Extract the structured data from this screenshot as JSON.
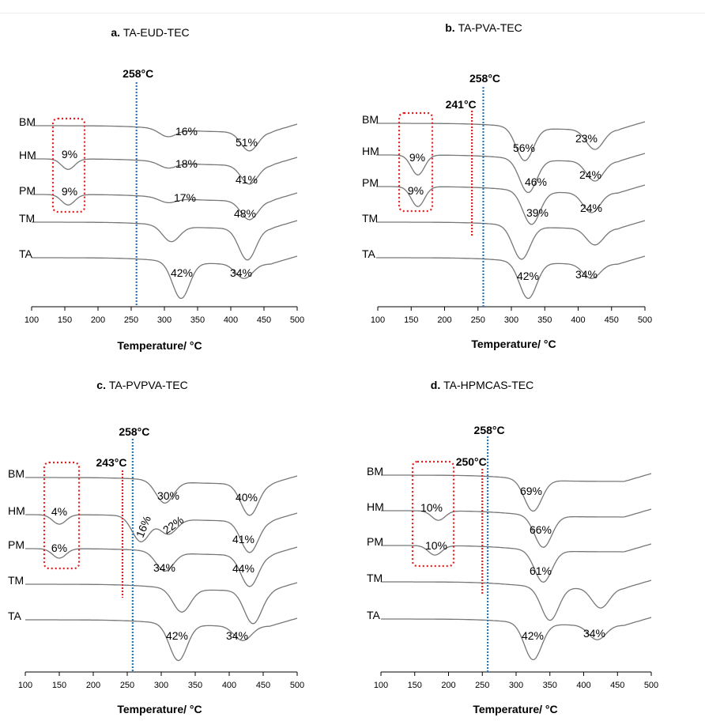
{
  "colors": {
    "curve": "#777777",
    "blue_line": "#2e75b6",
    "red_line": "#e02020",
    "box": "#e02020"
  },
  "chart_data": [
    {
      "type": "line",
      "letter": "a.",
      "title": "TA-EUD-TEC",
      "xlabel": "Temperature/ °C",
      "ylabel": "",
      "xlim": [
        100,
        500
      ],
      "xticks": [
        "100",
        "150",
        "200",
        "250",
        "300",
        "350",
        "400",
        "450",
        "500"
      ],
      "series": [
        {
          "name": "BM",
          "events": [
            {
              "t": 305,
              "depth": 0.4
            },
            {
              "t": 428,
              "depth": 1.0
            }
          ]
        },
        {
          "name": "HM",
          "events": [
            {
              "t": 155,
              "depth": 0.55
            },
            {
              "t": 305,
              "depth": 0.3
            },
            {
              "t": 428,
              "depth": 1.0
            }
          ]
        },
        {
          "name": "PM",
          "events": [
            {
              "t": 155,
              "depth": 0.55
            },
            {
              "t": 305,
              "depth": 0.25
            },
            {
              "t": 428,
              "depth": 1.0
            }
          ]
        },
        {
          "name": "TM",
          "events": [
            {
              "t": 310,
              "depth": 0.5
            },
            {
              "t": 425,
              "depth": 1.0
            }
          ]
        },
        {
          "name": "TA",
          "events": [
            {
              "t": 325,
              "depth": 1.0
            },
            {
              "t": 420,
              "depth": 0.4
            }
          ]
        }
      ],
      "blue_line": {
        "x": 258,
        "label": "258°C"
      },
      "red_line": null,
      "annotations": [
        {
          "series": "BM",
          "text": "16%"
        },
        {
          "series": "BM",
          "text": "51%"
        },
        {
          "series": "HM",
          "text": "9%"
        },
        {
          "series": "HM",
          "text": "18%"
        },
        {
          "series": "HM",
          "text": "41%"
        },
        {
          "series": "PM",
          "text": "9%"
        },
        {
          "series": "PM",
          "text": "17%"
        },
        {
          "series": "PM",
          "text": "48%"
        },
        {
          "series": "TA",
          "text": "42%"
        },
        {
          "series": "TA",
          "text": "34%"
        }
      ]
    },
    {
      "type": "line",
      "letter": "b.",
      "title": "TA-PVA-TEC",
      "xlabel": "Temperature/ °C",
      "ylabel": "",
      "xlim": [
        100,
        500
      ],
      "xticks": [
        "100",
        "150",
        "200",
        "250",
        "300",
        "350",
        "400",
        "450",
        "500"
      ],
      "series": [
        {
          "name": "BM",
          "events": [
            {
              "t": 320,
              "depth": 1.0
            },
            {
              "t": 425,
              "depth": 0.6
            }
          ]
        },
        {
          "name": "HM",
          "events": [
            {
              "t": 160,
              "depth": 0.6
            },
            {
              "t": 325,
              "depth": 1.0
            },
            {
              "t": 425,
              "depth": 0.6
            }
          ]
        },
        {
          "name": "PM",
          "events": [
            {
              "t": 160,
              "depth": 0.6
            },
            {
              "t": 330,
              "depth": 1.0
            },
            {
              "t": 420,
              "depth": 0.6
            }
          ]
        },
        {
          "name": "TM",
          "events": [
            {
              "t": 315,
              "depth": 1.0
            },
            {
              "t": 425,
              "depth": 0.5
            }
          ]
        },
        {
          "name": "TA",
          "events": [
            {
              "t": 325,
              "depth": 1.0
            },
            {
              "t": 420,
              "depth": 0.4
            }
          ]
        }
      ],
      "blue_line": {
        "x": 258,
        "label": "258°C"
      },
      "red_line": {
        "x": 241,
        "label": "241°C"
      },
      "annotations": [
        {
          "series": "BM",
          "text": "56%"
        },
        {
          "series": "BM",
          "text": "23%"
        },
        {
          "series": "HM",
          "text": "9%"
        },
        {
          "series": "HM",
          "text": "46%"
        },
        {
          "series": "HM",
          "text": "24%"
        },
        {
          "series": "PM",
          "text": "9%"
        },
        {
          "series": "PM",
          "text": "39%"
        },
        {
          "series": "PM",
          "text": "24%"
        },
        {
          "series": "TA",
          "text": "42%"
        },
        {
          "series": "TA",
          "text": "34%"
        }
      ]
    },
    {
      "type": "line",
      "letter": "c.",
      "title": "TA-PVPVA-TEC",
      "xlabel": "Temperature/ °C",
      "ylabel": "",
      "xlim": [
        100,
        500
      ],
      "xticks": [
        "100",
        "150",
        "200",
        "250",
        "300",
        "350",
        "400",
        "450",
        "500"
      ],
      "series": [
        {
          "name": "BM",
          "events": [
            {
              "t": 305,
              "depth": 0.7
            },
            {
              "t": 430,
              "depth": 1.0
            }
          ]
        },
        {
          "name": "HM",
          "events": [
            {
              "t": 150,
              "depth": 0.3
            },
            {
              "t": 270,
              "depth": 0.8
            },
            {
              "t": 310,
              "depth": 0.5
            },
            {
              "t": 430,
              "depth": 1.0
            }
          ]
        },
        {
          "name": "PM",
          "events": [
            {
              "t": 150,
              "depth": 0.3
            },
            {
              "t": 305,
              "depth": 0.6
            },
            {
              "t": 430,
              "depth": 1.0
            }
          ]
        },
        {
          "name": "TM",
          "events": [
            {
              "t": 330,
              "depth": 0.7
            },
            {
              "t": 435,
              "depth": 1.0
            }
          ]
        },
        {
          "name": "TA",
          "events": [
            {
              "t": 325,
              "depth": 1.0
            },
            {
              "t": 420,
              "depth": 0.4
            }
          ]
        }
      ],
      "blue_line": {
        "x": 258,
        "label": "258°C"
      },
      "red_line": {
        "x": 243,
        "label": "243°C"
      },
      "annotations": [
        {
          "series": "BM",
          "text": "30%"
        },
        {
          "series": "BM",
          "text": "40%"
        },
        {
          "series": "HM",
          "text": "4%"
        },
        {
          "series": "HM",
          "text": "16%"
        },
        {
          "series": "HM",
          "text": "22%"
        },
        {
          "series": "HM",
          "text": "41%"
        },
        {
          "series": "PM",
          "text": "6%"
        },
        {
          "series": "PM",
          "text": "34%"
        },
        {
          "series": "PM",
          "text": "44%"
        },
        {
          "series": "TA",
          "text": "42%"
        },
        {
          "series": "TA",
          "text": "34%"
        }
      ]
    },
    {
      "type": "line",
      "letter": "d.",
      "title": "TA-HPMCAS-TEC",
      "xlabel": "Temperature/ °C",
      "ylabel": "",
      "xlim": [
        100,
        500
      ],
      "xticks": [
        "100",
        "150",
        "200",
        "250",
        "300",
        "350",
        "400",
        "450",
        "500"
      ],
      "series": [
        {
          "name": "BM",
          "events": [
            {
              "t": 325,
              "depth": 1.0
            }
          ]
        },
        {
          "name": "HM",
          "events": [
            {
              "t": 185,
              "depth": 0.3
            },
            {
              "t": 340,
              "depth": 1.0
            }
          ]
        },
        {
          "name": "PM",
          "events": [
            {
              "t": 180,
              "depth": 0.3
            },
            {
              "t": 340,
              "depth": 1.0
            }
          ]
        },
        {
          "name": "TM",
          "events": [
            {
              "t": 350,
              "depth": 1.0
            },
            {
              "t": 425,
              "depth": 0.6
            }
          ]
        },
        {
          "name": "TA",
          "events": [
            {
              "t": 325,
              "depth": 1.0
            },
            {
              "t": 420,
              "depth": 0.4
            }
          ]
        }
      ],
      "blue_line": {
        "x": 258,
        "label": "258°C"
      },
      "red_line": {
        "x": 250,
        "label": "250°C"
      },
      "annotations": [
        {
          "series": "BM",
          "text": "69%"
        },
        {
          "series": "HM",
          "text": "10%"
        },
        {
          "series": "HM",
          "text": "66%"
        },
        {
          "series": "PM",
          "text": "10%"
        },
        {
          "series": "PM",
          "text": "61%"
        },
        {
          "series": "TA",
          "text": "42%"
        },
        {
          "series": "TA",
          "text": "34%"
        }
      ]
    }
  ]
}
